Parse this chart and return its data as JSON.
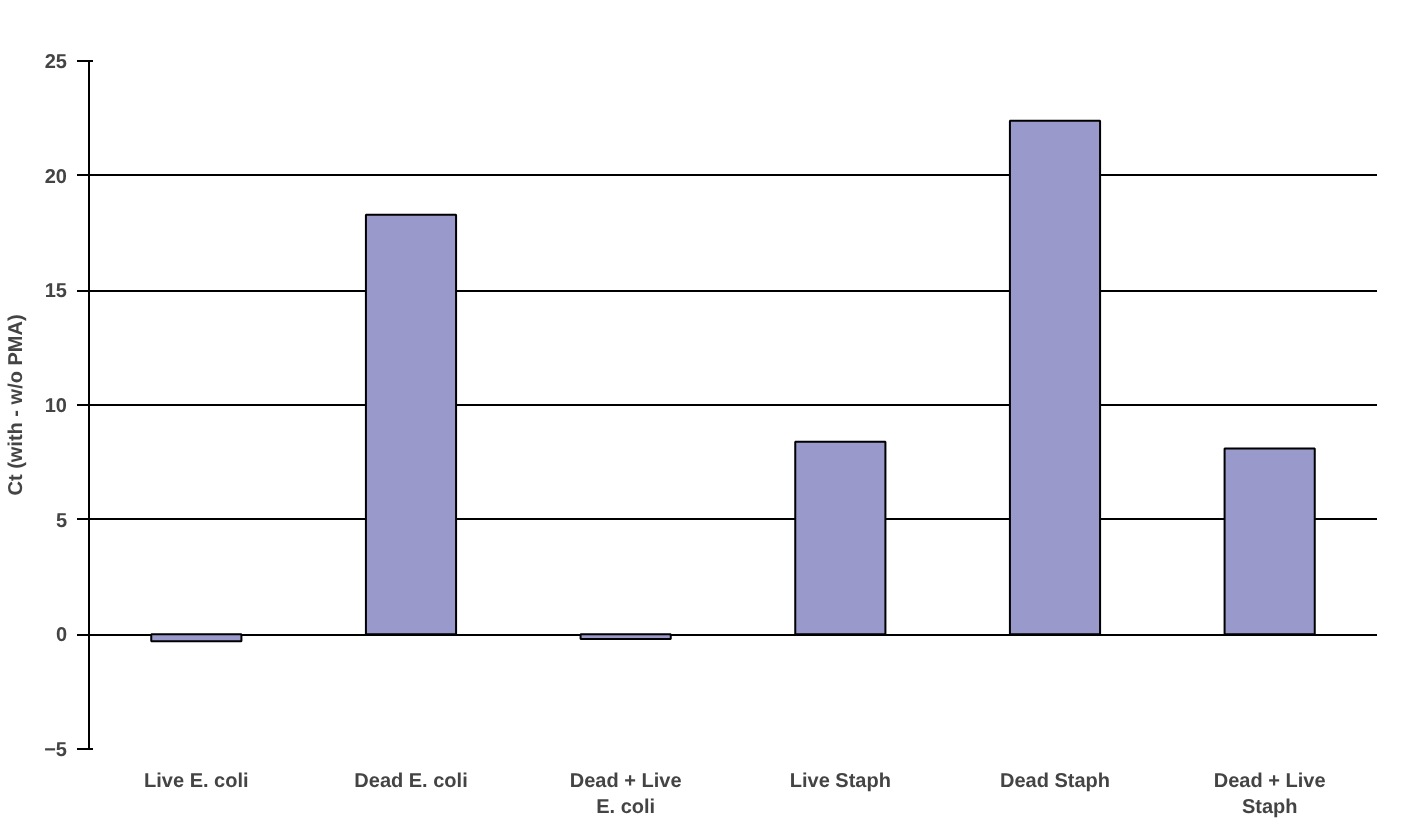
{
  "chart_data": {
    "type": "bar",
    "ylabel": "Ct (with - w/o PMA)",
    "categories": [
      "Live E. coli",
      "Dead E. coli",
      "Dead + Live E. coli",
      "Live Staph",
      "Dead Staph",
      "Dead + Live Staph"
    ],
    "values": [
      -0.3,
      18.3,
      -0.2,
      8.4,
      22.4,
      8.1
    ],
    "color": "#9999cc",
    "ylim": [
      -5,
      25
    ],
    "yticks": [
      -5,
      0,
      5,
      10,
      15,
      20,
      25
    ],
    "grid": "y"
  }
}
